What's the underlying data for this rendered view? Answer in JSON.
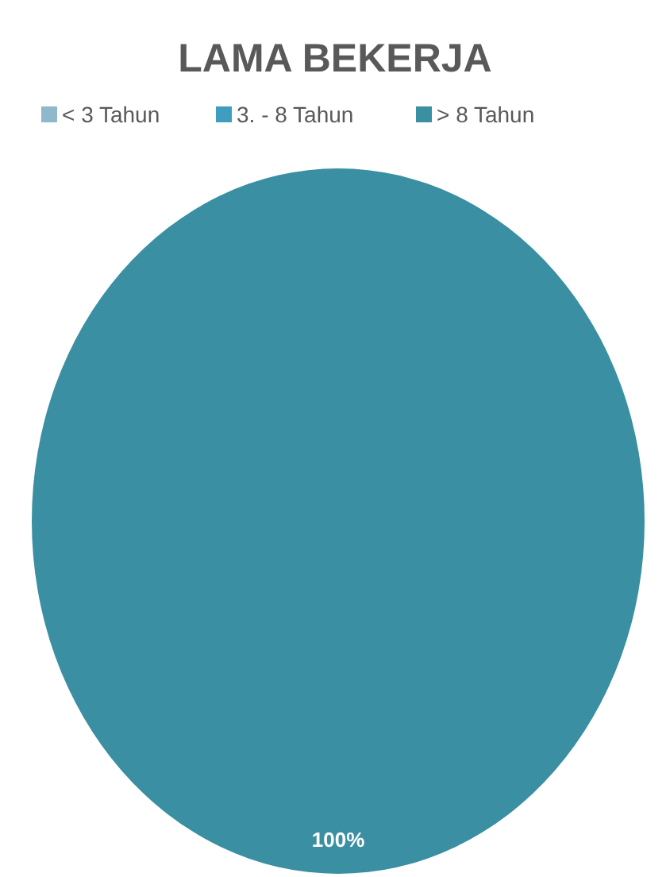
{
  "chart_data": {
    "type": "pie",
    "title": "LAMA BEKERJA",
    "categories": [
      "< 3 Tahun",
      "3. - 8 Tahun",
      "> 8 Tahun"
    ],
    "values": [
      0,
      0,
      100
    ],
    "colors": [
      "#8fb8cc",
      "#3f9dbf",
      "#3a8fa2"
    ],
    "value_labels": [
      null,
      null,
      "100%"
    ],
    "legend": "top"
  }
}
